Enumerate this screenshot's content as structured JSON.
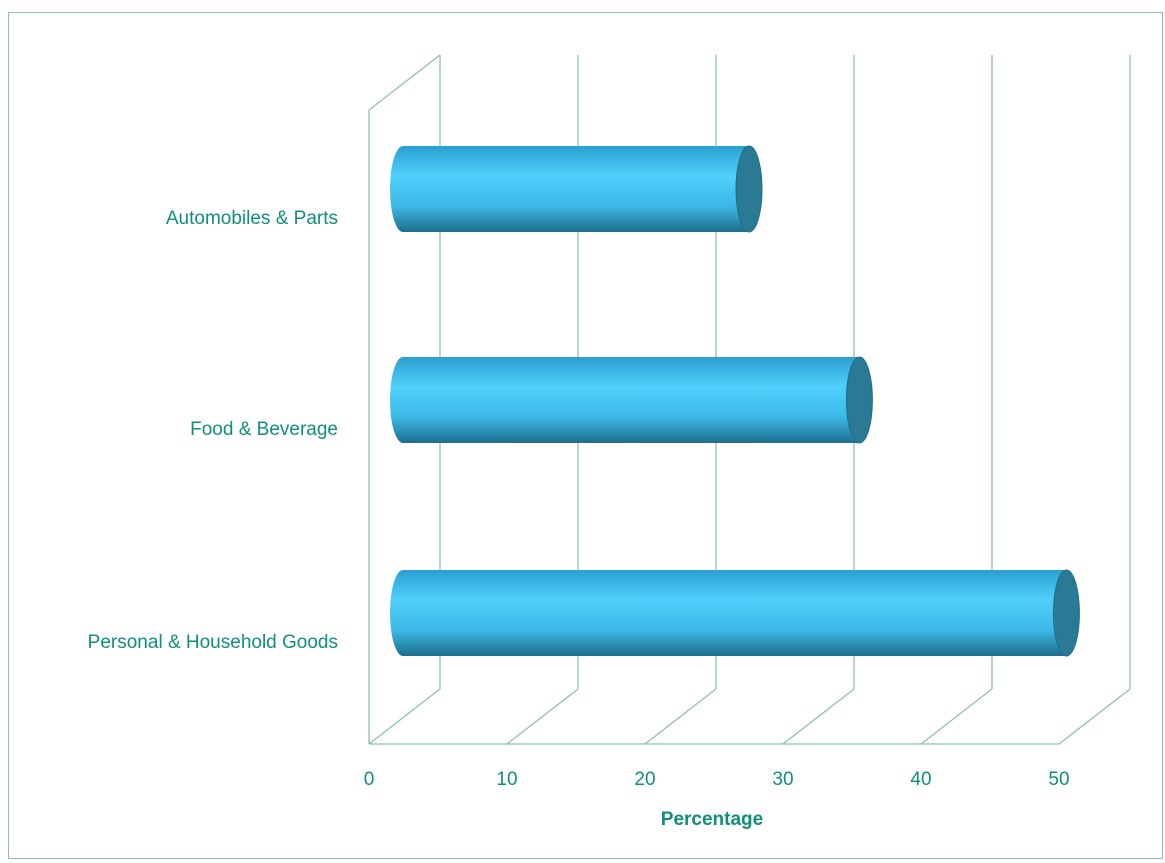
{
  "chart_data": {
    "type": "bar",
    "orientation": "horizontal",
    "style": "3d-cylinder",
    "categories": [
      "Automobiles & Parts",
      "Food & Beverage",
      "Personal & Household Goods"
    ],
    "values": [
      25,
      33,
      48
    ],
    "title": "",
    "xlabel": "Percentage",
    "ylabel": "",
    "xlim": [
      0,
      50
    ],
    "xticks": [
      "0",
      "10",
      "20",
      "30",
      "40",
      "50"
    ],
    "grid": true,
    "legend": "none",
    "colors": {
      "bar_light": "#4fd0fb",
      "bar_mid": "#2bb0e0",
      "bar_dark": "#1d6e8c",
      "bar_cap": "#2a7a96",
      "grid": "#8fbfb0",
      "text": "#0f8f7a",
      "border": "#8fbfb0"
    }
  }
}
